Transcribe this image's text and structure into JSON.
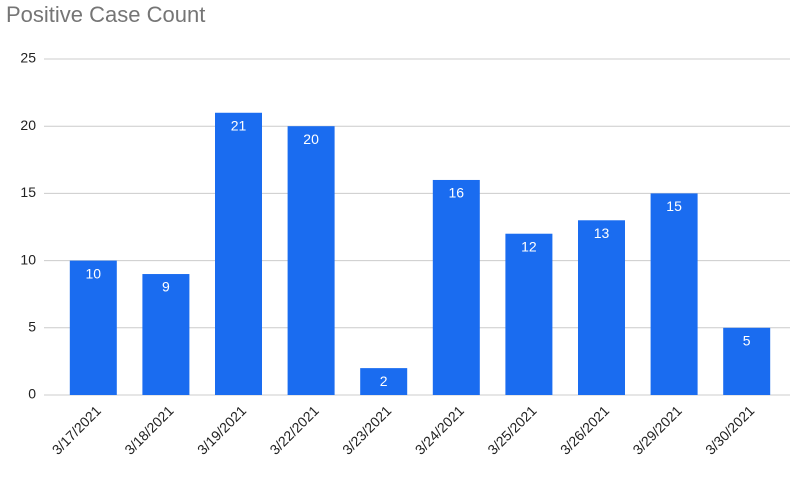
{
  "chart_data": {
    "type": "bar",
    "title": "Positive Case Count",
    "categories": [
      "3/17/2021",
      "3/18/2021",
      "3/19/2021",
      "3/22/2021",
      "3/23/2021",
      "3/24/2021",
      "3/25/2021",
      "3/26/2021",
      "3/29/2021",
      "3/30/2021"
    ],
    "values": [
      10,
      9,
      21,
      20,
      2,
      16,
      12,
      13,
      15,
      5
    ],
    "color": "#1a6cf0",
    "ylim": [
      0,
      25
    ],
    "yticks": [
      0,
      5,
      10,
      15,
      20,
      25
    ],
    "grid": true
  }
}
